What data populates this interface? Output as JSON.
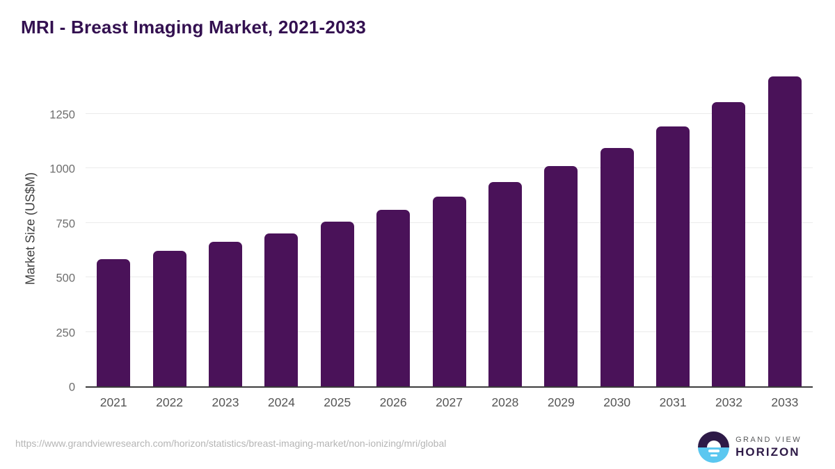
{
  "chart_data": {
    "type": "bar",
    "title": "MRI - Breast Imaging Market, 2021-2033",
    "xlabel": "",
    "ylabel": "Market Size (US$M)",
    "categories": [
      "2021",
      "2022",
      "2023",
      "2024",
      "2025",
      "2026",
      "2027",
      "2028",
      "2029",
      "2030",
      "2031",
      "2032",
      "2033"
    ],
    "values": [
      584,
      622,
      662,
      701,
      755,
      810,
      870,
      937,
      1011,
      1095,
      1193,
      1304,
      1422
    ],
    "ylim": [
      0,
      1460
    ],
    "yticks": [
      0,
      250,
      500,
      750,
      1000,
      1250
    ],
    "grid": true,
    "legend": "none",
    "bar_color": "#4a1259"
  },
  "colors": {
    "title": "#331050",
    "gridline": "#ebebeb",
    "axis_line": "#3b3b3b",
    "ytick_text": "#6e6e6e",
    "xtick_text": "#555555",
    "url_text": "#b5b5b5",
    "logo_purple": "#2e1a47",
    "logo_blue": "#5bc7f0"
  },
  "footer": {
    "source_url": "https://www.grandviewresearch.com/horizon/statistics/breast-imaging-market/non-ionizing/mri/global",
    "logo": {
      "line1": "GRAND VIEW",
      "line2": "HORIZON"
    }
  }
}
